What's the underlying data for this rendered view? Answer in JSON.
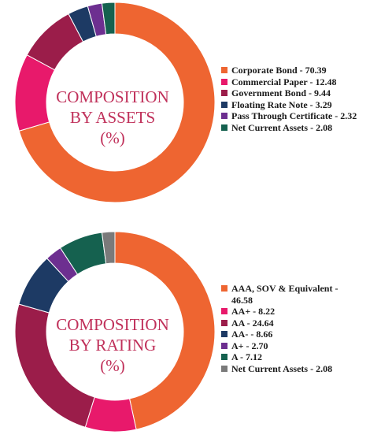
{
  "chart_data": [
    {
      "type": "pie",
      "title_lines": [
        "COMPOSITION",
        "BY ASSETS",
        "(%)"
      ],
      "categories": [
        "Corporate Bond",
        "Commercial Paper",
        "Government Bond",
        "Floating Rate Note",
        "Pass Through Certificate",
        "Net Current Assets"
      ],
      "values": [
        70.39,
        12.48,
        9.44,
        3.29,
        2.32,
        2.08
      ],
      "legend_labels": [
        "Corporate Bond - 70.39",
        "Commercial Paper - 12.48",
        "Government Bond - 9.44",
        "Floating Rate Note - 3.29",
        "Pass Through Certificate - 2.32",
        "Net Current Assets - 2.08"
      ],
      "colors": [
        "#ee6531",
        "#e8196b",
        "#9b1d4a",
        "#1d3a64",
        "#6d2f90",
        "#15614f"
      ],
      "legend_placement": "right"
    },
    {
      "type": "pie",
      "title_lines": [
        "COMPOSITION",
        "BY RATING",
        "(%)"
      ],
      "categories": [
        "AAA, SOV & Equivalent",
        "AA+",
        "AA",
        "AA-",
        "A+",
        "A",
        "Net Current Assets"
      ],
      "values": [
        46.58,
        8.22,
        24.64,
        8.66,
        2.7,
        7.12,
        2.08
      ],
      "legend_labels": [
        "AAA, SOV & Equivalent - 46.58",
        "AA+ - 8.22",
        "AA - 24.64",
        "AA- - 8.66",
        "A+ - 2.70",
        "A - 7.12",
        "Net Current Assets - 2.08"
      ],
      "colors": [
        "#ee6531",
        "#e8196b",
        "#9b1d4a",
        "#1d3a64",
        "#6d2f90",
        "#15614f",
        "#7a7a7a"
      ],
      "legend_placement": "right"
    }
  ]
}
